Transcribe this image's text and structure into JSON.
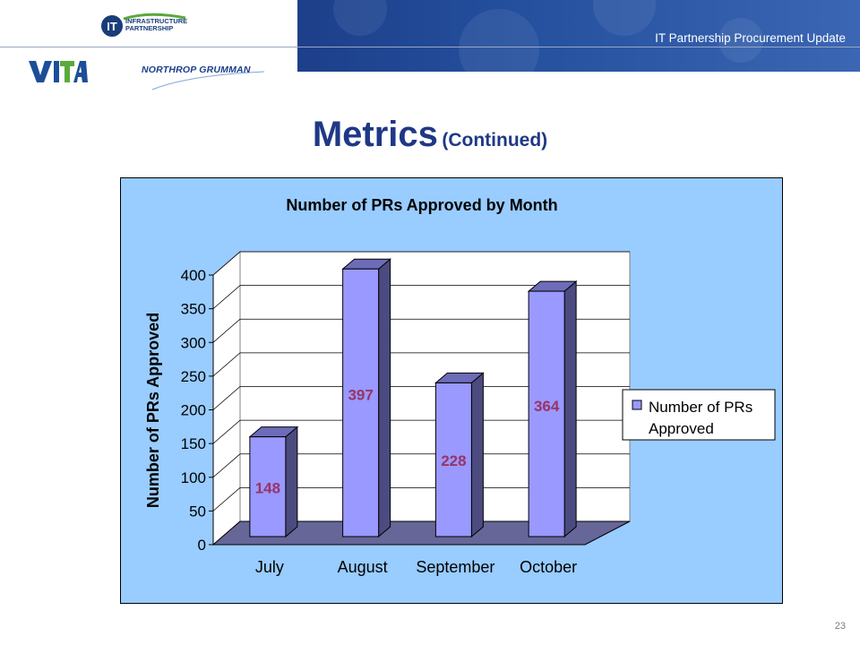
{
  "header": {
    "title": "IT Partnership Procurement Update"
  },
  "logos": {
    "itp_line1": "INFRASTRUCTURE",
    "itp_line2": "PARTNERSHIP",
    "vita": "VITA",
    "northrop": "NORTHROP GRUMMAN"
  },
  "page": {
    "title": "Metrics",
    "subtitle": "(Continued)",
    "number": "23"
  },
  "colors": {
    "bar": "#9999ff",
    "plot_bg": "#99ccff",
    "floor": "#666699",
    "label": "#993366",
    "title": "#1f3886"
  },
  "chart_data": {
    "type": "bar",
    "title": "Number of PRs Approved by Month",
    "xlabel": "",
    "ylabel": "Number of PRs Approved",
    "categories": [
      "July",
      "August",
      "September",
      "October"
    ],
    "series": [
      {
        "name": "Number of PRs Approved",
        "values": [
          148,
          397,
          228,
          364
        ]
      }
    ],
    "data_labels": [
      "148",
      "397",
      "228",
      "364"
    ],
    "yticks": [
      "0",
      "50",
      "100",
      "150",
      "200",
      "250",
      "300",
      "350",
      "400"
    ],
    "ylim": [
      0,
      400
    ],
    "grid": true,
    "legend": "right",
    "style": "3d-column"
  }
}
